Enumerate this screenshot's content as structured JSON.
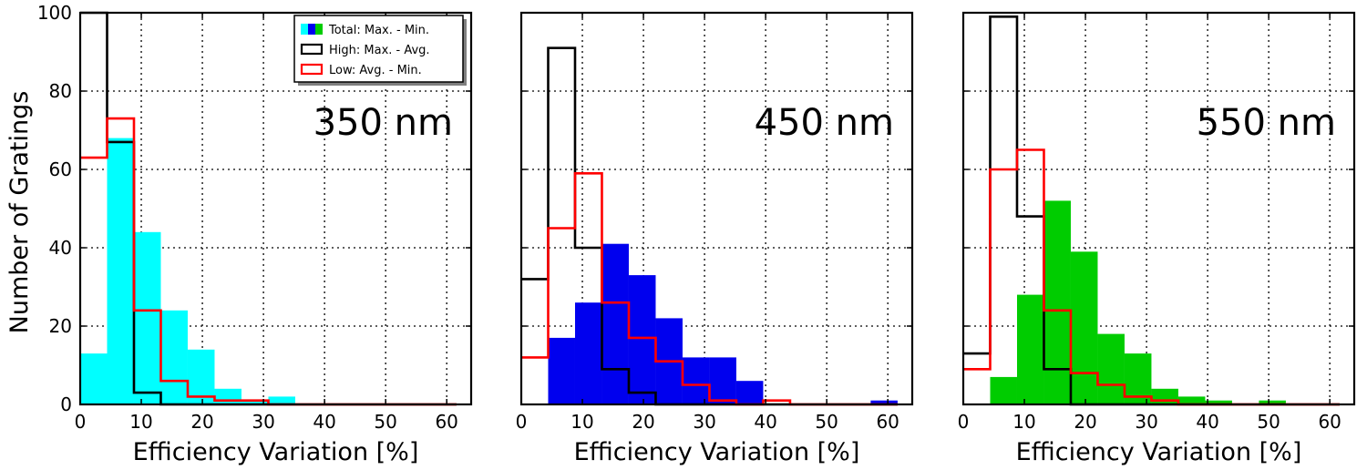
{
  "y_axis_title": "Number of Gratings",
  "legend": {
    "entries": [
      {
        "key": "total",
        "label": "Total: Max. - Min."
      },
      {
        "key": "high",
        "label": "High: Max. - Avg."
      },
      {
        "key": "low",
        "label": "Low: Avg. - Min."
      }
    ]
  },
  "chart_data": [
    {
      "type": "histogram",
      "panel_label": "350 nm",
      "xlabel": "Efficiency Variation [%]",
      "ylabel": "Number of Gratings",
      "xlim": [
        0,
        64
      ],
      "ylim": [
        0,
        100
      ],
      "xticks": [
        0,
        10,
        20,
        30,
        40,
        50,
        60
      ],
      "yticks": [
        0,
        20,
        40,
        60,
        80,
        100
      ],
      "grid": true,
      "legend_position": "top-right",
      "fill_color": "#00ffff",
      "series": [
        {
          "name": "Total: Max. - Min.",
          "style": "filled",
          "color": "#00ffff",
          "edges": [
            0,
            4.4,
            8.8,
            13.2,
            17.6,
            22,
            26.4,
            30.8,
            35.2,
            39.6,
            44,
            48.4,
            52.8,
            57.2,
            61.6
          ],
          "counts": [
            13,
            68,
            44,
            24,
            14,
            4,
            1,
            2,
            0,
            0,
            0,
            0,
            0,
            0
          ]
        },
        {
          "name": "High: Max. - Avg.",
          "style": "step",
          "color": "#000000",
          "edges": [
            0,
            4.4,
            8.8,
            13.2,
            17.6,
            22,
            26.4,
            30.8,
            35.2,
            39.6,
            44,
            48.4,
            52.8,
            57.2,
            61.6
          ],
          "counts": [
            100,
            67,
            3,
            0,
            0,
            0,
            0,
            0,
            0,
            0,
            0,
            0,
            0,
            0
          ]
        },
        {
          "name": "Low: Avg. - Min.",
          "style": "step",
          "color": "#ff0000",
          "edges": [
            0,
            4.4,
            8.8,
            13.2,
            17.6,
            22,
            26.4,
            30.8,
            35.2,
            39.6,
            44,
            48.4,
            52.8,
            57.2,
            61.6
          ],
          "counts": [
            63,
            73,
            24,
            6,
            2,
            1,
            1,
            0,
            0,
            0,
            0,
            0,
            0,
            0
          ]
        }
      ]
    },
    {
      "type": "histogram",
      "panel_label": "450 nm",
      "xlabel": "Efficiency Variation [%]",
      "xlim": [
        0,
        64
      ],
      "ylim": [
        0,
        100
      ],
      "xticks": [
        0,
        10,
        20,
        30,
        40,
        50,
        60
      ],
      "grid": true,
      "fill_color": "#0000ee",
      "series": [
        {
          "name": "Total: Max. - Min.",
          "style": "filled",
          "color": "#0000ee",
          "edges": [
            4.4,
            8.8,
            13.2,
            17.6,
            22,
            26.4,
            30.8,
            35.2,
            39.6,
            44,
            48.4,
            52.8,
            57.2,
            61.6
          ],
          "counts": [
            17,
            26,
            41,
            33,
            22,
            12,
            12,
            6,
            0,
            0,
            0,
            0,
            1
          ]
        },
        {
          "name": "High: Max. - Avg.",
          "style": "step",
          "color": "#000000",
          "edges": [
            0,
            4.4,
            8.8,
            13.2,
            17.6,
            22,
            26.4,
            30.8,
            35.2,
            39.6,
            44,
            48.4,
            52.8,
            57.2,
            61.6
          ],
          "counts": [
            32,
            91,
            40,
            9,
            3,
            0,
            0,
            0,
            0,
            0,
            0,
            0,
            0,
            0
          ]
        },
        {
          "name": "Low: Avg. - Min.",
          "style": "step",
          "color": "#ff0000",
          "edges": [
            0,
            4.4,
            8.8,
            13.2,
            17.6,
            22,
            26.4,
            30.8,
            35.2,
            39.6,
            44,
            48.4,
            52.8,
            57.2,
            61.6
          ],
          "counts": [
            12,
            45,
            59,
            26,
            17,
            11,
            5,
            1,
            0,
            1,
            0,
            0,
            0,
            0
          ]
        }
      ]
    },
    {
      "type": "histogram",
      "panel_label": "550 nm",
      "xlabel": "Efficiency Variation [%]",
      "xlim": [
        0,
        64
      ],
      "ylim": [
        0,
        100
      ],
      "xticks": [
        0,
        10,
        20,
        30,
        40,
        50,
        60
      ],
      "grid": true,
      "fill_color": "#00cc00",
      "series": [
        {
          "name": "Total: Max. - Min.",
          "style": "filled",
          "color": "#00cc00",
          "edges": [
            4.4,
            8.8,
            13.2,
            17.6,
            22,
            26.4,
            30.8,
            35.2,
            39.6,
            44,
            48.4,
            52.8,
            57.2,
            61.6
          ],
          "counts": [
            7,
            28,
            52,
            39,
            18,
            13,
            4,
            2,
            1,
            0,
            1,
            0,
            0
          ]
        },
        {
          "name": "High: Max. - Avg.",
          "style": "step",
          "color": "#000000",
          "edges": [
            0,
            4.4,
            8.8,
            13.2,
            17.6,
            22,
            26.4,
            30.8,
            35.2,
            39.6,
            44,
            48.4,
            52.8,
            57.2,
            61.6
          ],
          "counts": [
            13,
            99,
            48,
            9,
            0,
            0,
            0,
            0,
            0,
            0,
            0,
            0,
            0,
            0
          ]
        },
        {
          "name": "Low: Avg. - Min.",
          "style": "step",
          "color": "#ff0000",
          "edges": [
            0,
            4.4,
            8.8,
            13.2,
            17.6,
            22,
            26.4,
            30.8,
            35.2,
            39.6,
            44,
            48.4,
            52.8,
            57.2,
            61.6
          ],
          "counts": [
            9,
            60,
            65,
            24,
            8,
            5,
            2,
            1,
            0,
            0,
            0,
            0,
            0,
            0
          ]
        }
      ]
    }
  ]
}
